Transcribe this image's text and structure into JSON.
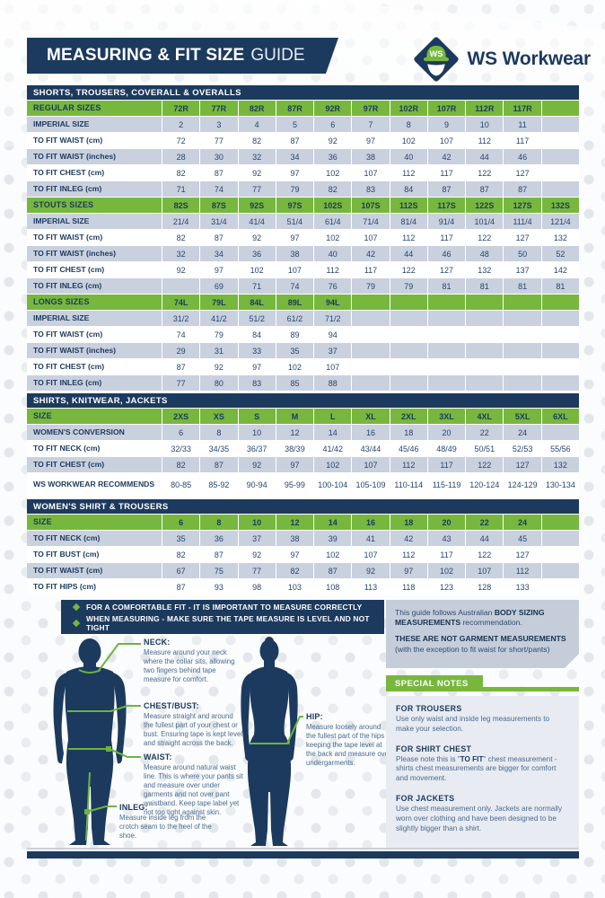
{
  "header": {
    "banner_bold": "MEASURING & FIT SIZE",
    "banner_light": "GUIDE",
    "logo_text": "WS",
    "brand": "WS Workwear"
  },
  "tables": [
    {
      "section": "SHORTS, TROUSERS, COVERALL & OVERALLS",
      "groups": [
        {
          "header_label": "REGULAR SIZES",
          "header_values": [
            "72R",
            "77R",
            "82R",
            "87R",
            "92R",
            "97R",
            "102R",
            "107R",
            "112R",
            "117R",
            ""
          ],
          "rows": [
            {
              "label": "IMPERIAL SIZE",
              "values": [
                "2",
                "3",
                "4",
                "5",
                "6",
                "7",
                "8",
                "9",
                "10",
                "11",
                ""
              ]
            },
            {
              "label": "TO FIT WAIST (cm)",
              "values": [
                "72",
                "77",
                "82",
                "87",
                "92",
                "97",
                "102",
                "107",
                "112",
                "117",
                ""
              ]
            },
            {
              "label": "TO FIT WAIST (inches)",
              "values": [
                "28",
                "30",
                "32",
                "34",
                "36",
                "38",
                "40",
                "42",
                "44",
                "46",
                ""
              ]
            },
            {
              "label": "TO FIT CHEST (cm)",
              "values": [
                "82",
                "87",
                "92",
                "97",
                "102",
                "107",
                "112",
                "117",
                "122",
                "127",
                ""
              ]
            },
            {
              "label": "TO FIT INLEG (cm)",
              "values": [
                "71",
                "74",
                "77",
                "79",
                "82",
                "83",
                "84",
                "87",
                "87",
                "87",
                ""
              ]
            }
          ]
        },
        {
          "header_label": "STOUTS SIZES",
          "header_values": [
            "82S",
            "87S",
            "92S",
            "97S",
            "102S",
            "107S",
            "112S",
            "117S",
            "122S",
            "127S",
            "132S"
          ],
          "rows": [
            {
              "label": "IMPERIAL SIZE",
              "values": [
                "21/4",
                "31/4",
                "41/4",
                "51/4",
                "61/4",
                "71/4",
                "81/4",
                "91/4",
                "101/4",
                "111/4",
                "121/4"
              ]
            },
            {
              "label": "TO FIT WAIST (cm)",
              "values": [
                "82",
                "87",
                "92",
                "97",
                "102",
                "107",
                "112",
                "117",
                "122",
                "127",
                "132"
              ]
            },
            {
              "label": "TO FIT WAIST (inches)",
              "values": [
                "32",
                "34",
                "36",
                "38",
                "40",
                "42",
                "44",
                "46",
                "48",
                "50",
                "52"
              ]
            },
            {
              "label": "TO FIT CHEST (cm)",
              "values": [
                "92",
                "97",
                "102",
                "107",
                "112",
                "117",
                "122",
                "127",
                "132",
                "137",
                "142"
              ]
            },
            {
              "label": "TO FIT INLEG (cm)",
              "values": [
                "",
                "69",
                "71",
                "74",
                "76",
                "79",
                "79",
                "81",
                "81",
                "81",
                "81"
              ]
            }
          ]
        },
        {
          "header_label": "LONGS SIZES",
          "header_values": [
            "74L",
            "79L",
            "84L",
            "89L",
            "94L",
            "",
            "",
            "",
            "",
            "",
            ""
          ],
          "rows": [
            {
              "label": "IMPERIAL SIZE",
              "values": [
                "31/2",
                "41/2",
                "51/2",
                "61/2",
                "71/2",
                "",
                "",
                "",
                "",
                "",
                ""
              ]
            },
            {
              "label": "TO FIT WAIST (cm)",
              "values": [
                "74",
                "79",
                "84",
                "89",
                "94",
                "",
                "",
                "",
                "",
                "",
                ""
              ]
            },
            {
              "label": "TO FIT WAIST (inches)",
              "values": [
                "29",
                "31",
                "33",
                "35",
                "37",
                "",
                "",
                "",
                "",
                "",
                ""
              ]
            },
            {
              "label": "TO FIT CHEST (cm)",
              "values": [
                "87",
                "92",
                "97",
                "102",
                "107",
                "",
                "",
                "",
                "",
                "",
                ""
              ]
            },
            {
              "label": "TO FIT INLEG (cm)",
              "values": [
                "77",
                "80",
                "83",
                "85",
                "88",
                "",
                "",
                "",
                "",
                "",
                ""
              ]
            }
          ]
        }
      ]
    },
    {
      "section": "SHIRTS, KNITWEAR, JACKETS",
      "groups": [
        {
          "header_label": "SIZE",
          "header_values": [
            "2XS",
            "XS",
            "S",
            "M",
            "L",
            "XL",
            "2XL",
            "3XL",
            "4XL",
            "5XL",
            "6XL"
          ],
          "rows": [
            {
              "label": "WOMEN'S CONVERSION",
              "values": [
                "6",
                "8",
                "10",
                "12",
                "14",
                "16",
                "18",
                "20",
                "22",
                "24",
                ""
              ]
            },
            {
              "label": "TO FIT NECK (cm)",
              "values": [
                "32/33",
                "34/35",
                "36/37",
                "38/39",
                "41/42",
                "43/44",
                "45/46",
                "48/49",
                "50/51",
                "52/53",
                "55/56"
              ]
            },
            {
              "label": "TO FIT CHEST (cm)",
              "values": [
                "82",
                "87",
                "92",
                "97",
                "102",
                "107",
                "112",
                "117",
                "122",
                "127",
                "132"
              ]
            },
            {
              "label": "WS WORKWEAR RECOMMENDS",
              "values": [
                "80-85",
                "85-92",
                "90-94",
                "95-99",
                "100-104",
                "105-109",
                "110-114",
                "115-119",
                "120-124",
                "124-129",
                "130-134"
              ],
              "tall": true
            }
          ]
        }
      ]
    },
    {
      "section": "WOMEN'S SHIRT & TROUSERS",
      "groups": [
        {
          "header_label": "SIZE",
          "header_values": [
            "6",
            "8",
            "10",
            "12",
            "14",
            "16",
            "18",
            "20",
            "22",
            "24",
            ""
          ],
          "rows": [
            {
              "label": "TO FIT NECK (cm)",
              "values": [
                "35",
                "36",
                "37",
                "38",
                "39",
                "41",
                "42",
                "43",
                "44",
                "45",
                ""
              ]
            },
            {
              "label": "TO FIT BUST (cm)",
              "values": [
                "82",
                "87",
                "92",
                "97",
                "102",
                "107",
                "112",
                "117",
                "122",
                "127",
                ""
              ]
            },
            {
              "label": "TO FIT WAIST (cm)",
              "values": [
                "67",
                "75",
                "77",
                "82",
                "87",
                "92",
                "97",
                "102",
                "107",
                "112",
                ""
              ]
            },
            {
              "label": "TO FIT HIPS (cm)",
              "values": [
                "87",
                "93",
                "98",
                "103",
                "108",
                "113",
                "118",
                "123",
                "128",
                "133",
                ""
              ]
            }
          ]
        }
      ]
    }
  ],
  "fit_tips": {
    "items": [
      "FOR A COMFORTABLE FIT - IT IS IMPORTANT TO MEASURE CORRECTLY",
      "WHEN MEASURING - MAKE SURE THE TAPE MEASURE IS LEVEL AND NOT TIGHT"
    ]
  },
  "measure_points": [
    {
      "title": "NECK:",
      "text": "Measure around your neck where the collar sits, allowing two fingers behind tape measure for comfort."
    },
    {
      "title": "CHEST/BUST:",
      "text": "Measure straight and around the fullest part of your chest or bust. Ensuring tape is kept level and straight across the back."
    },
    {
      "title": "WAIST:",
      "text": "Measure around natural waist line. This is where your pants sit and measure over under garments and not over pant waistband. Keep tape label yet not too tight against skin."
    },
    {
      "title": "INLEG:",
      "text": "Measure inside leg from the crotch seam to the heel of the shoe."
    },
    {
      "title": "HIP:",
      "text": "Measure loosely around the fullest part of the hips keeping the tape level at the back and measure over undergarments."
    }
  ],
  "guide_note": {
    "line1_prefix": "This guide follows Australian ",
    "line1_bold": "BODY SIZING MEASUREMENTS",
    "line1_suffix": " recommendation.",
    "line2_bold": "THESE ARE NOT GARMENT MEASUREMENTS",
    "line2_normal": "(with the exception to fit waist for short/pants)"
  },
  "special_notes": {
    "title": "SPECIAL NOTES",
    "notes": [
      {
        "heading": "FOR TROUSERS",
        "text": "Use only waist and inside leg measurements to make your selection."
      },
      {
        "heading": "FOR SHIRT CHEST",
        "text_prefix": "Please note this is \"",
        "text_bold": "TO FIT",
        "text_suffix": "\" chest measurement - shirts chest measurements are bigger for comfort and movement."
      },
      {
        "heading": "FOR JACKETS",
        "text": "Use chest measurement only. Jackets are normally worn over clothing and have been designed to be slightly bigger than a shirt."
      }
    ]
  }
}
